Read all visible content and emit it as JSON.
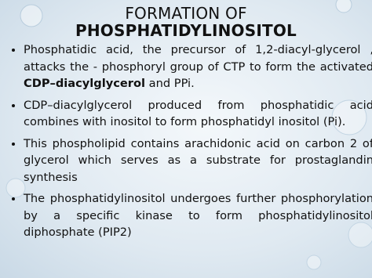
{
  "slide": {
    "title": [
      "FORMATION OF",
      "PHOSPHATIDYLINOSITOL"
    ],
    "bullets": [
      [
        {
          "text": "Phosphatidic acid, the precursor of 1,2-diacyl-glycerol , attacks the - phosphoryl group of CTP to form the activated "
        },
        {
          "text": "CDP–diacylglycerol",
          "bold": true
        },
        {
          "text": " and PPi."
        }
      ],
      [
        {
          "text": "CDP–diacylglycerol produced from phosphatidic acid combines with inositol to form phosphatidyl inositol (Pi)."
        }
      ],
      [
        {
          "text": "This phospholipid contains arachidonic acid on carbon 2 of glycerol which serves as a substrate for prostaglandin synthesis"
        }
      ],
      [
        {
          "text": "The phosphatidylinositol undergoes further phosphorylation by a specific kinase to form phosphatidylinositol diphosphate (PIP2)"
        }
      ]
    ]
  }
}
